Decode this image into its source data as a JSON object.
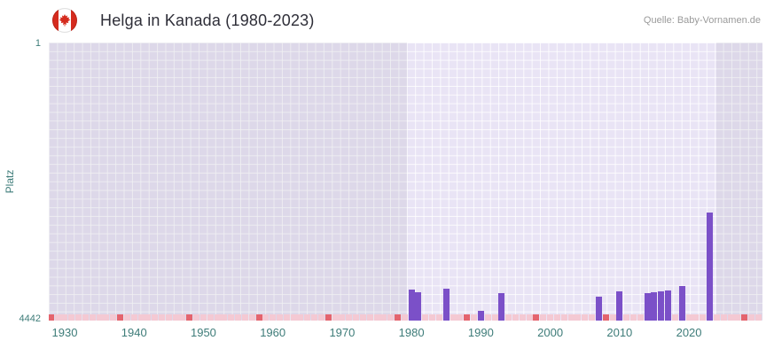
{
  "header": {
    "title": "Helga in Kanada (1980-2023)",
    "source": "Quelle: Baby-Vornamen.de",
    "flag": "canada-flag"
  },
  "chart_data": {
    "type": "bar",
    "title": "Helga in Kanada (1980-2023)",
    "ylabel": "Platz",
    "y_axis": {
      "top_tick": "1",
      "bottom_tick": "4442",
      "min": 1,
      "max": 4442,
      "inverted": true
    },
    "x_axis": {
      "min": 1927.7,
      "max": 2030.6,
      "ticks": [
        1930,
        1940,
        1950,
        1960,
        1970,
        1980,
        1990,
        2000,
        2010,
        2020
      ]
    },
    "data_range": {
      "start": 1980,
      "end": 2023
    },
    "series": [
      {
        "name": "Platz",
        "points": [
          {
            "year": 1980,
            "rank": 3947
          },
          {
            "year": 1981,
            "rank": 3990
          },
          {
            "year": 1985,
            "rank": 3933
          },
          {
            "year": 1990,
            "rank": 4286
          },
          {
            "year": 1993,
            "rank": 4000
          },
          {
            "year": 2007,
            "rank": 4060
          },
          {
            "year": 2010,
            "rank": 3975
          },
          {
            "year": 2014,
            "rank": 4005
          },
          {
            "year": 2015,
            "rank": 3990
          },
          {
            "year": 2016,
            "rank": 3975
          },
          {
            "year": 2017,
            "rank": 3965
          },
          {
            "year": 2019,
            "rank": 3890
          },
          {
            "year": 2023,
            "rank": 2717
          }
        ]
      }
    ],
    "unranked_decade_marks": [
      1928,
      1938,
      1948,
      1958,
      1968,
      1978,
      1988,
      1998,
      2008,
      2028
    ],
    "legend": "none",
    "grid": true,
    "colors": {
      "bar": "#7b50c8",
      "plot_bg": "#e9e4f5",
      "mark_light": "#f4c9d3",
      "mark_dark": "#e4646e",
      "axis_text": "#3e7c79",
      "title_text": "#2e2e38",
      "source_text": "#9a9a9a",
      "flag_red": "#d52b1e"
    }
  }
}
